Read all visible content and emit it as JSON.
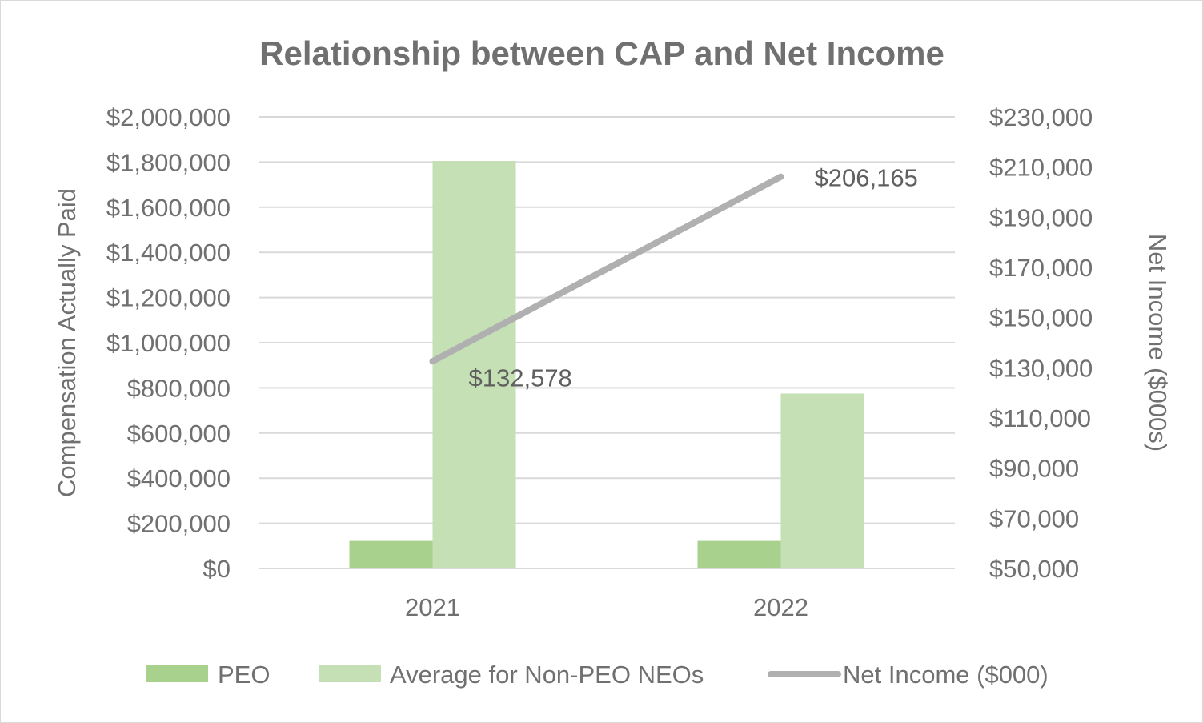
{
  "chart_data": {
    "type": "bar",
    "title": "Relationship between CAP and Net Income",
    "categories": [
      "2021",
      "2022"
    ],
    "series": [
      {
        "name": "PEO",
        "kind": "bar",
        "axis": "left",
        "color": "#a9d18e",
        "values": [
          122000,
          122000
        ]
      },
      {
        "name": "Average for Non-PEO NEOs",
        "kind": "bar",
        "axis": "left",
        "color": "#c5e0b4",
        "values": [
          1805000,
          775000
        ]
      },
      {
        "name": "Net Income ($000)",
        "kind": "line",
        "axis": "right",
        "color": "#b0b0b0",
        "values": [
          132578,
          206165
        ],
        "data_labels": [
          "$132,578",
          "$206,165"
        ]
      }
    ],
    "ylabel": "Compensation Actually Paid",
    "y2label": "Net Income ($000s)",
    "ylim": [
      0,
      2000000
    ],
    "y2lim": [
      50000,
      230000
    ],
    "yticks": [
      "$0",
      "$200,000",
      "$400,000",
      "$600,000",
      "$800,000",
      "$1,000,000",
      "$1,200,000",
      "$1,400,000",
      "$1,600,000",
      "$1,800,000",
      "$2,000,000"
    ],
    "y2ticks": [
      "$50,000",
      "$70,000",
      "$90,000",
      "$110,000",
      "$130,000",
      "$150,000",
      "$170,000",
      "$190,000",
      "$210,000",
      "$230,000"
    ],
    "grid": true,
    "legend": "bottom"
  }
}
